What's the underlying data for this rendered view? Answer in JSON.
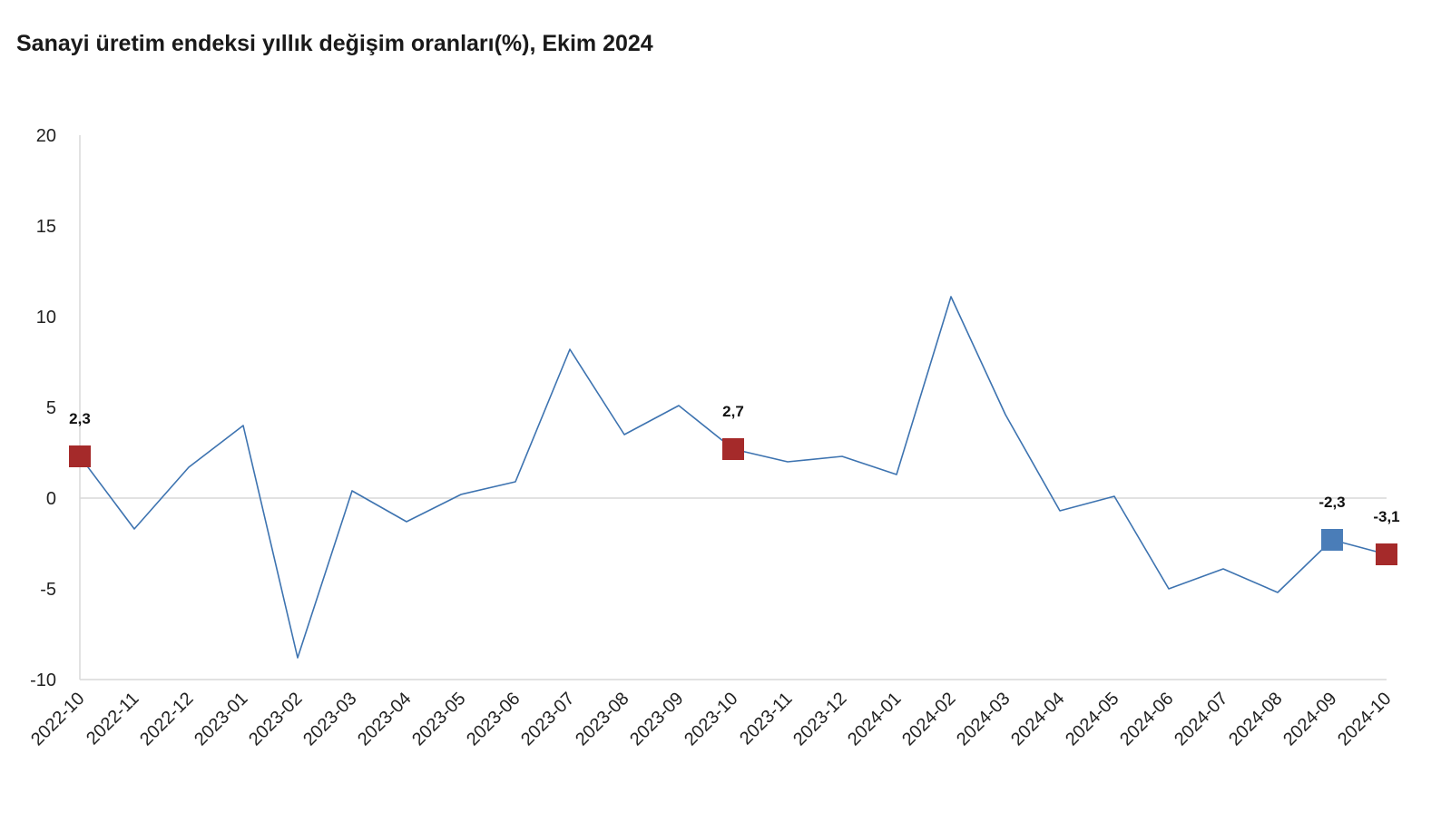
{
  "chart_data": {
    "type": "line",
    "title": "Sanayi üretim endeksi yıllık değişim oranları(%), Ekim 2024",
    "xlabel": "",
    "ylabel": "",
    "ylim": [
      -10,
      20
    ],
    "yticks": [
      "20",
      "15",
      "10",
      "5",
      "0",
      "-5",
      "-10"
    ],
    "ytick_values": [
      20,
      15,
      10,
      5,
      0,
      -5,
      -10
    ],
    "grid": false,
    "legend": "none",
    "categories": [
      "2022-10",
      "2022-11",
      "2022-12",
      "2023-01",
      "2023-02",
      "2023-03",
      "2023-04",
      "2023-05",
      "2023-06",
      "2023-07",
      "2023-08",
      "2023-09",
      "2023-10",
      "2023-11",
      "2023-12",
      "2024-01",
      "2024-02",
      "2024-03",
      "2024-04",
      "2024-05",
      "2024-06",
      "2024-07",
      "2024-08",
      "2024-09",
      "2024-10"
    ],
    "series": [
      {
        "values": [
          2.3,
          -1.7,
          1.7,
          4.0,
          -8.8,
          0.4,
          -1.3,
          0.2,
          0.9,
          8.2,
          3.5,
          5.1,
          2.7,
          2.0,
          2.3,
          1.3,
          11.1,
          4.6,
          -0.7,
          0.1,
          -5.0,
          -3.9,
          -5.2,
          -2.3,
          -3.1
        ]
      }
    ],
    "highlighted_points": [
      {
        "index": 0,
        "label": "2,3",
        "color": "#a52a2a"
      },
      {
        "index": 12,
        "label": "2,7",
        "color": "#a52a2a"
      },
      {
        "index": 23,
        "label": "-2,3",
        "color": "#4a7db8"
      },
      {
        "index": 24,
        "label": "-3,1",
        "color": "#a52a2a"
      }
    ],
    "colors": {
      "line": "#3d73b0",
      "axis": "#d9d9d9",
      "zero_line": "#d9d9d9"
    }
  }
}
